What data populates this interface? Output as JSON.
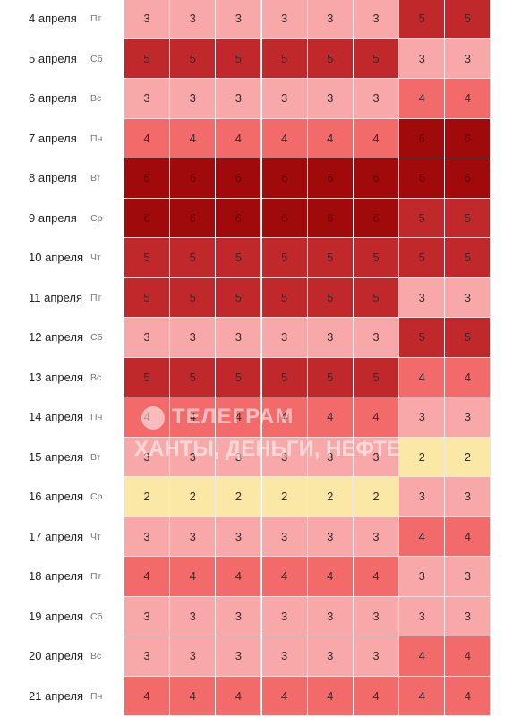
{
  "table": {
    "level_colors": {
      "2": "#fbe8a6",
      "3": "#f8a8a8",
      "4": "#f26a6a",
      "5": "#c1282b",
      "6": "#a10a0a"
    },
    "rows": [
      {
        "date": "4 апреля",
        "weekday": "Пт",
        "values": [
          3,
          3,
          3,
          3,
          3,
          3,
          5,
          5
        ]
      },
      {
        "date": "5 апреля",
        "weekday": "Сб",
        "values": [
          5,
          5,
          5,
          5,
          5,
          5,
          3,
          3
        ]
      },
      {
        "date": "6 апреля",
        "weekday": "Вс",
        "values": [
          3,
          3,
          3,
          3,
          3,
          3,
          4,
          4
        ]
      },
      {
        "date": "7 апреля",
        "weekday": "Пн",
        "values": [
          4,
          4,
          4,
          4,
          4,
          4,
          6,
          6
        ]
      },
      {
        "date": "8 апреля",
        "weekday": "Вт",
        "values": [
          6,
          6,
          6,
          6,
          6,
          6,
          6,
          6
        ]
      },
      {
        "date": "9 апреля",
        "weekday": "Ср",
        "values": [
          6,
          6,
          6,
          6,
          6,
          6,
          5,
          5
        ]
      },
      {
        "date": "10 апреля",
        "weekday": "Чт",
        "values": [
          5,
          5,
          5,
          5,
          5,
          5,
          5,
          5
        ]
      },
      {
        "date": "11 апреля",
        "weekday": "Пт",
        "values": [
          5,
          5,
          5,
          5,
          5,
          5,
          3,
          3
        ]
      },
      {
        "date": "12 апреля",
        "weekday": "Сб",
        "values": [
          3,
          3,
          3,
          3,
          3,
          3,
          5,
          5
        ]
      },
      {
        "date": "13 апреля",
        "weekday": "Вс",
        "values": [
          5,
          5,
          5,
          5,
          5,
          5,
          4,
          4
        ]
      },
      {
        "date": "14 апреля",
        "weekday": "Пн",
        "values": [
          4,
          4,
          4,
          4,
          4,
          4,
          3,
          3
        ]
      },
      {
        "date": "15 апреля",
        "weekday": "Вт",
        "values": [
          3,
          3,
          3,
          3,
          3,
          3,
          2,
          2
        ]
      },
      {
        "date": "16 апреля",
        "weekday": "Ср",
        "values": [
          2,
          2,
          2,
          2,
          2,
          2,
          3,
          3
        ]
      },
      {
        "date": "17 апреля",
        "weekday": "Чт",
        "values": [
          3,
          3,
          3,
          3,
          3,
          3,
          4,
          4
        ]
      },
      {
        "date": "18 апреля",
        "weekday": "Пт",
        "values": [
          4,
          4,
          4,
          4,
          4,
          4,
          3,
          3
        ]
      },
      {
        "date": "19 апреля",
        "weekday": "Сб",
        "values": [
          3,
          3,
          3,
          3,
          3,
          3,
          3,
          3
        ]
      },
      {
        "date": "20 апреля",
        "weekday": "Вс",
        "values": [
          3,
          3,
          3,
          3,
          3,
          3,
          4,
          4
        ]
      },
      {
        "date": "21 апреля",
        "weekday": "Пн",
        "values": [
          4,
          4,
          4,
          4,
          4,
          4,
          4,
          4
        ]
      }
    ]
  },
  "watermark": {
    "line1": "ТЕЛЕГРАМ",
    "line2": "ХАНТЫ, ДЕНЬГИ, НЕФТЕ"
  }
}
